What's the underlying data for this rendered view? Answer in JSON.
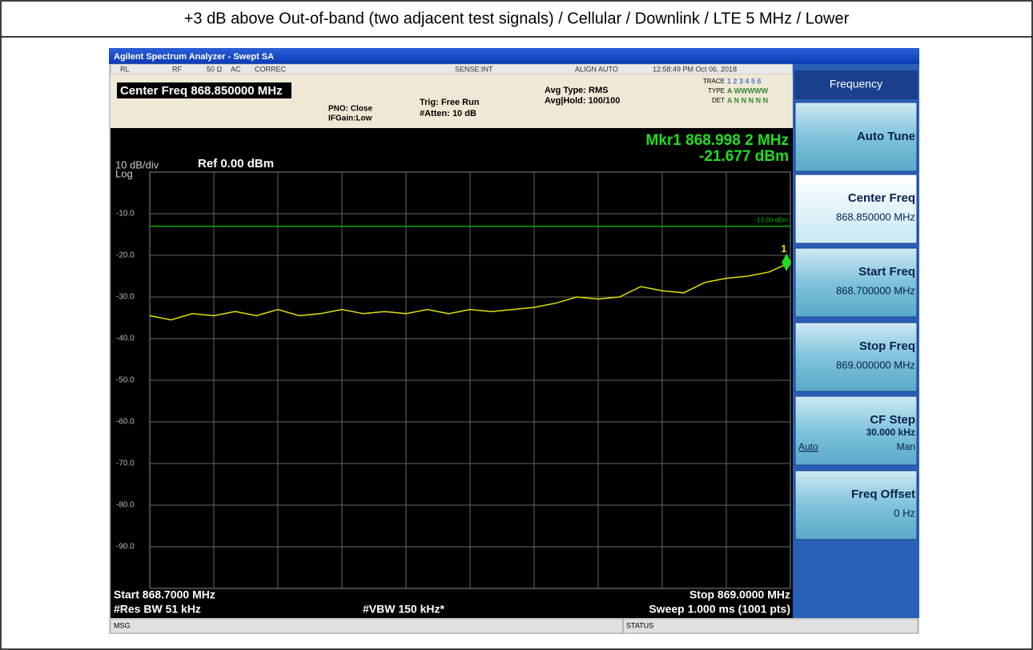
{
  "header": {
    "title": "+3 dB above Out-of-band (two adjacent test signals) / Cellular / Downlink / LTE 5 MHz / Lower"
  },
  "window_title": "Agilent Spectrum Analyzer - Swept SA",
  "status_row": {
    "items": [
      "RL",
      "RF",
      "50 Ω",
      "AC",
      "CORREC",
      "SENSE:INT",
      "ALIGN AUTO",
      "12:58:49 PM Oct 06, 2018"
    ]
  },
  "settings": {
    "center_freq": "Center Freq 868.850000 MHz",
    "pno": "PNO: Close",
    "ifgain": "IFGain:Low",
    "trig": "Trig: Free Run",
    "atten": "#Atten: 10 dB",
    "avg_type": "Avg Type: RMS",
    "avg_hold": "Avg|Hold: 100/100",
    "trace_label": "TRACE",
    "trace_nums": "1 2 3 4 5 6",
    "type_label": "TYPE",
    "type_vals": "A WWWWW",
    "det_label": "DET",
    "det_vals": "A N N N N N"
  },
  "marker": {
    "label": "Mkr1 868.998 2 MHz",
    "value_label": "-21.677 dBm",
    "number": "1",
    "x": 868.9982,
    "y": -21.677,
    "color": "#22dd22"
  },
  "plot": {
    "scale": "10 dB/div",
    "log": "Log",
    "ref": "Ref 0.00 dBm",
    "xlim": [
      868.7,
      869.0
    ],
    "ylim": [
      -100,
      0
    ],
    "grid": true,
    "xticks": [
      868.73,
      868.76,
      868.79,
      868.82,
      868.85,
      868.88,
      868.91,
      868.94,
      868.97
    ],
    "yticks": [
      {
        "value": -10,
        "label": "-10.0"
      },
      {
        "value": -20,
        "label": "-20.0"
      },
      {
        "value": -30,
        "label": "-30.0"
      },
      {
        "value": -40,
        "label": "-40.0"
      },
      {
        "value": -50,
        "label": "-50.0"
      },
      {
        "value": -60,
        "label": "-60.0"
      },
      {
        "value": -70,
        "label": "-70.0"
      },
      {
        "value": -80,
        "label": "-80.0"
      },
      {
        "value": -90,
        "label": "-90.0"
      }
    ],
    "limit_line": {
      "value": -13,
      "label": "-13.00 dBm",
      "color": "#00b000"
    },
    "trace": {
      "color": "#e0e000",
      "x": [
        868.7,
        868.71,
        868.72,
        868.73,
        868.74,
        868.75,
        868.76,
        868.77,
        868.78,
        868.79,
        868.8,
        868.81,
        868.82,
        868.83,
        868.84,
        868.85,
        868.86,
        868.87,
        868.88,
        868.89,
        868.9,
        868.91,
        868.92,
        868.93,
        868.94,
        868.95,
        868.96,
        868.97,
        868.98,
        868.99,
        869.0
      ],
      "values": [
        -34.5,
        -35.5,
        -34,
        -34.5,
        -33.5,
        -34.5,
        -33,
        -34.5,
        -34,
        -33,
        -34,
        -33.5,
        -34,
        -33,
        -34,
        -33,
        -33.5,
        -33,
        -32.5,
        -31.5,
        -30,
        -30.5,
        -30,
        -27.5,
        -28.5,
        -29,
        -26.5,
        -25.5,
        -25,
        -24,
        -21.7
      ]
    }
  },
  "footer": {
    "start": "Start 868.7000 MHz",
    "res_bw": "#Res BW 51 kHz",
    "vbw": "#VBW 150 kHz*",
    "stop": "Stop 869.0000 MHz",
    "sweep": "Sweep  1.000 ms (1001 pts)"
  },
  "softkeys": {
    "title": "Frequency",
    "keys": [
      {
        "label": "Auto Tune"
      },
      {
        "label": "Center Freq",
        "value": "868.850000 MHz"
      },
      {
        "label": "Start Freq",
        "value": "868.700000 MHz"
      },
      {
        "label": "Stop Freq",
        "value": "869.000000 MHz"
      },
      {
        "label": "CF Step",
        "value": "30.000 kHz",
        "options": [
          "Auto",
          "Man"
        ]
      },
      {
        "label": "Freq Offset",
        "value": "0 Hz"
      }
    ]
  },
  "bottom_bar": {
    "msg": "MSG",
    "status": "STATUS"
  }
}
